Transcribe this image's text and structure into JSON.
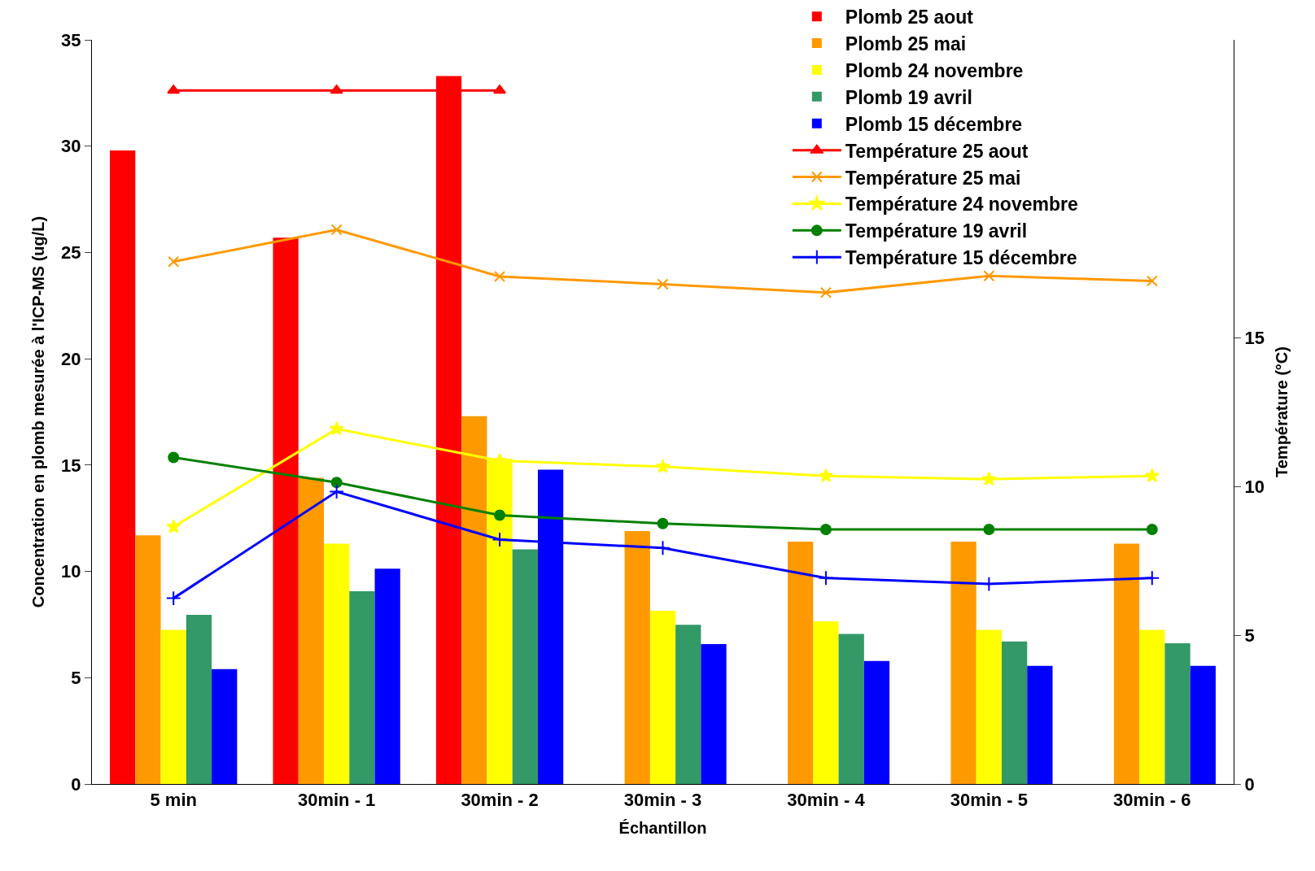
{
  "chart_data": {
    "type": "bar",
    "xlabel": "Échantillon",
    "ylabel": "Concentration en plomb mesurée à l'ICP-MS (ug/L)",
    "y2label": "Température (°C)",
    "categories": [
      "5 min",
      "30min - 1",
      "30min - 2",
      "30min - 3",
      "30min - 4",
      "30min - 5",
      "30min - 6"
    ],
    "ylim": [
      0,
      35
    ],
    "yticks": [
      0,
      5,
      10,
      15,
      20,
      25,
      30,
      35
    ],
    "y2lim": [
      0,
      25
    ],
    "y2ticks": [
      0,
      5,
      10,
      15
    ],
    "legend": "top right",
    "series": [
      {
        "name": "Plomb 25 aout",
        "color": "#ff0000",
        "values": [
          29.8,
          25.7,
          33.3,
          null,
          null,
          null,
          null
        ]
      },
      {
        "name": "Plomb 25 mai",
        "type": "bar",
        "color": "#ff9900",
        "values": [
          11.7,
          14.4,
          17.3,
          11.9,
          11.4,
          11.4,
          11.3
        ]
      },
      {
        "name": "Plomb 24 novembre",
        "type": "bar",
        "color": "#ffff00",
        "values": [
          7.25,
          11.3,
          15.3,
          8.15,
          7.65,
          7.25,
          7.25
        ]
      },
      {
        "name": "Plomb 19 avril",
        "type": "bar",
        "color": "#339966",
        "values": [
          7.96,
          9.07,
          11.04,
          7.49,
          7.06,
          6.7,
          6.62
        ]
      },
      {
        "name": "Plomb 15 décembre",
        "type": "bar",
        "color": "#0000ff",
        "values": [
          5.4,
          10.13,
          14.78,
          6.58,
          5.79,
          5.56,
          5.56
        ]
      },
      {
        "name": "Température 25 aout",
        "type": "line",
        "axis": "y2",
        "marker": "triangle",
        "color": "#ff0000",
        "values": [
          23.3,
          23.3,
          23.3,
          null,
          null,
          null,
          null
        ]
      },
      {
        "name": "Température 25 mai",
        "type": "line",
        "axis": "y2",
        "marker": "cross",
        "color": "#ff9900",
        "values": [
          17.55,
          18.62,
          17.05,
          16.79,
          16.51,
          17.07,
          16.9
        ]
      },
      {
        "name": "Température 24 novembre",
        "type": "line",
        "axis": "y2",
        "marker": "star",
        "color": "#ffff00",
        "values": [
          8.64,
          11.93,
          10.86,
          10.66,
          10.35,
          10.24,
          10.35
        ]
      },
      {
        "name": "Température 19 avril",
        "type": "line",
        "axis": "y2",
        "marker": "circle",
        "color": "#008000",
        "values": [
          10.97,
          10.13,
          9.03,
          8.75,
          8.55,
          8.55,
          8.55
        ]
      },
      {
        "name": "Température 15 décembre",
        "type": "line",
        "axis": "y2",
        "marker": "plus",
        "color": "#0000ff",
        "values": [
          6.24,
          9.82,
          8.21,
          7.93,
          6.92,
          6.72,
          6.92
        ]
      }
    ]
  }
}
